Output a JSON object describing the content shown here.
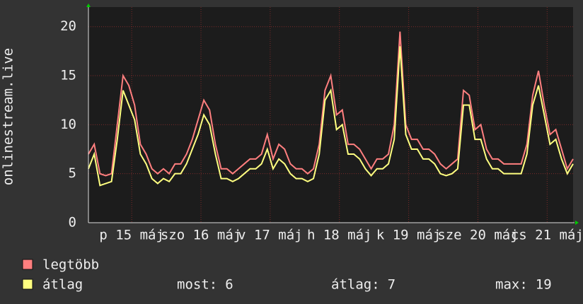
{
  "chart_data": {
    "type": "line",
    "y_label": "onlinestream.live",
    "x": [
      0,
      2,
      4,
      6,
      8,
      10,
      12,
      14,
      16,
      18,
      20,
      22,
      24,
      26,
      28,
      30,
      32,
      34,
      36,
      38,
      40,
      42,
      44,
      46,
      48,
      50,
      52,
      54,
      56,
      58,
      60,
      62,
      64,
      66,
      68,
      70,
      72,
      74,
      76,
      78,
      80,
      82,
      84,
      86,
      88,
      90,
      92,
      94,
      96,
      98,
      100,
      102,
      104,
      106,
      108,
      110,
      112,
      114,
      116,
      118,
      120,
      122,
      124,
      126,
      128,
      130,
      132,
      134,
      136,
      138,
      140,
      142,
      144,
      146,
      148,
      150,
      152,
      154,
      156,
      158,
      160,
      162,
      164,
      166,
      168
    ],
    "xlim": [
      0,
      168
    ],
    "xticks": [
      {
        "value": 15,
        "label": "p 15 máj"
      },
      {
        "value": 39,
        "label": "szo 16 máj"
      },
      {
        "value": 63,
        "label": "v 17 máj"
      },
      {
        "value": 87,
        "label": "h 18 máj"
      },
      {
        "value": 111,
        "label": "k 19 máj"
      },
      {
        "value": 135,
        "label": "sze 20 máj"
      },
      {
        "value": 159,
        "label": "cs 21 máj"
      }
    ],
    "ylim": [
      0,
      22
    ],
    "yticks": [
      0,
      5,
      10,
      15,
      20
    ],
    "grid": true,
    "series": [
      {
        "name": "legtöbb",
        "color": "#ff7f7f",
        "values": [
          7,
          8,
          5,
          4.8,
          5,
          10,
          15,
          14,
          12,
          8,
          7,
          5.5,
          5,
          5.5,
          5,
          6,
          6,
          7,
          8.5,
          10.5,
          12.5,
          11.5,
          8,
          5.5,
          5.5,
          5,
          5.5,
          6,
          6.5,
          6.5,
          7,
          9,
          6.5,
          8,
          7.5,
          6,
          5.5,
          5.5,
          5,
          5.5,
          8,
          13.5,
          15,
          11,
          11.5,
          8,
          8,
          7.5,
          6.5,
          5.5,
          6.5,
          6.5,
          7,
          10,
          19.5,
          10,
          8.5,
          8.5,
          7.5,
          7.5,
          7,
          6,
          5.5,
          6,
          6.5,
          13.5,
          13,
          9.5,
          10,
          7.5,
          6.5,
          6.5,
          6,
          6,
          6,
          6,
          8,
          13,
          15.5,
          12,
          9,
          9.5,
          7.5,
          5.5,
          6.5
        ]
      },
      {
        "name": "átlag",
        "color": "#ffff80",
        "values": [
          5.5,
          7,
          3.8,
          4,
          4.2,
          8.5,
          13.5,
          12,
          10.5,
          7,
          6,
          4.5,
          4,
          4.5,
          4.2,
          5,
          5,
          6,
          7.5,
          9,
          11,
          10,
          7,
          4.5,
          4.5,
          4.2,
          4.5,
          5,
          5.5,
          5.5,
          6,
          7.5,
          5.5,
          6.5,
          6,
          5,
          4.5,
          4.5,
          4.2,
          4.5,
          7,
          12.5,
          13.5,
          9.5,
          10,
          7,
          7,
          6.5,
          5.5,
          4.8,
          5.5,
          5.5,
          6,
          8.5,
          18,
          9,
          7.5,
          7.5,
          6.5,
          6.5,
          6,
          5,
          4.8,
          5,
          5.5,
          12,
          12,
          8.5,
          8.5,
          6.5,
          5.5,
          5.5,
          5,
          5,
          5,
          5,
          7,
          12,
          14,
          11,
          8,
          8.5,
          6.5,
          5,
          6
        ]
      }
    ],
    "stats": [
      {
        "label": "most:",
        "value": 6
      },
      {
        "label": "átlag:",
        "value": 7
      },
      {
        "label": "max:",
        "value": 19
      }
    ]
  }
}
